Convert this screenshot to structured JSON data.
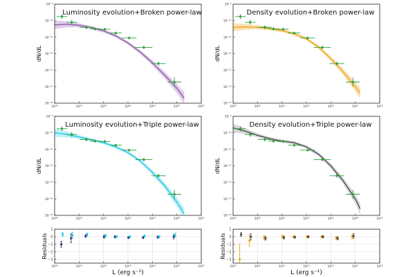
{
  "chart_data": [
    {
      "type": "line",
      "title": "Luminosity evolution+Broken power-law",
      "xlabel": "",
      "ylabel": "dN/dL",
      "xlim_log10": [
        49,
        55
      ],
      "ylim_log10": [
        -15,
        -9
      ],
      "x_tick_labels": [
        "10⁴⁹",
        "10⁵⁰",
        "10⁵¹",
        "10⁵²",
        "10⁵³",
        "10⁵⁴",
        "10⁵⁵"
      ],
      "y_tick_labels": [
        "10⁻⁹",
        "10⁻¹⁰",
        "10⁻¹¹",
        "10⁻¹²",
        "10⁻¹³",
        "10⁻¹⁴",
        "10⁻¹⁵"
      ],
      "model_color": "#8e5fa8",
      "band_color": "#c9a8dc",
      "model_log10": {
        "x": [
          49.0,
          49.5,
          50.0,
          50.5,
          51.0,
          51.5,
          52.0,
          52.5,
          53.0,
          53.5,
          54.0,
          54.3
        ],
        "y": [
          -10.25,
          -10.22,
          -10.28,
          -10.42,
          -10.62,
          -10.92,
          -11.35,
          -11.9,
          -12.55,
          -13.3,
          -14.1,
          -14.7
        ]
      },
      "band_halfwidth": [
        0.25,
        0.18,
        0.12,
        0.1,
        0.1,
        0.1,
        0.1,
        0.12,
        0.15,
        0.2,
        0.28,
        0.35
      ],
      "data_log10": {
        "x": [
          49.3,
          49.7,
          50.3,
          50.65,
          51.05,
          51.5,
          52.05,
          52.65,
          53.25,
          53.9
        ],
        "y": [
          -9.75,
          -10.1,
          -10.4,
          -10.5,
          -10.52,
          -10.75,
          -11.05,
          -11.62,
          -12.6,
          -13.72
        ],
        "xerr": [
          0.22,
          0.22,
          0.28,
          0.22,
          0.22,
          0.25,
          0.3,
          0.35,
          0.3,
          0.28
        ],
        "yerr": [
          0.15,
          0.15,
          0.12,
          0.1,
          0.08,
          0.08,
          0.08,
          0.1,
          0.12,
          0.28
        ]
      },
      "data_color": "#2e9e3e"
    },
    {
      "type": "line",
      "title": "Density evolution+Broken power-law",
      "xlabel": "",
      "ylabel": "dN/dL",
      "xlim_log10": [
        49,
        55
      ],
      "ylim_log10": [
        -15,
        -9
      ],
      "x_tick_labels": [
        "10⁴⁹",
        "10⁵⁰",
        "10⁵¹",
        "10⁵²",
        "10⁵³",
        "10⁵⁴",
        "10⁵⁵"
      ],
      "y_tick_labels": [
        "10⁻⁹",
        "10⁻¹⁰",
        "10⁻¹¹",
        "10⁻¹²",
        "10⁻¹³",
        "10⁻¹⁴",
        "10⁻¹⁵"
      ],
      "model_color": "#f0a30a",
      "band_color": "#f7cf8a",
      "model_log10": {
        "x": [
          49.0,
          49.5,
          50.0,
          50.5,
          51.0,
          51.5,
          52.0,
          52.5,
          53.0,
          53.5,
          54.0,
          54.2
        ],
        "y": [
          -10.4,
          -10.38,
          -10.4,
          -10.48,
          -10.6,
          -10.8,
          -11.1,
          -11.6,
          -12.3,
          -13.1,
          -14.0,
          -14.4
        ]
      },
      "band_halfwidth": [
        0.25,
        0.18,
        0.12,
        0.1,
        0.1,
        0.1,
        0.1,
        0.12,
        0.15,
        0.2,
        0.28,
        0.35
      ],
      "data_log10": {
        "x": [
          49.3,
          49.7,
          50.3,
          50.65,
          51.05,
          51.5,
          52.05,
          52.65,
          53.25,
          53.9
        ],
        "y": [
          -9.75,
          -10.1,
          -10.4,
          -10.5,
          -10.52,
          -10.75,
          -11.05,
          -11.62,
          -12.6,
          -13.72
        ],
        "xerr": [
          0.22,
          0.22,
          0.28,
          0.22,
          0.22,
          0.25,
          0.3,
          0.35,
          0.3,
          0.28
        ],
        "yerr": [
          0.15,
          0.15,
          0.12,
          0.1,
          0.08,
          0.08,
          0.08,
          0.1,
          0.12,
          0.28
        ]
      },
      "data_color": "#2e9e3e"
    },
    {
      "type": "line",
      "title": "Luminosity evolution+Triple power-law",
      "xlabel": "",
      "ylabel": "dN/dL",
      "xlim_log10": [
        49,
        55
      ],
      "ylim_log10": [
        -15,
        -9
      ],
      "x_tick_labels": [
        "10⁴⁹",
        "10⁵⁰",
        "10⁵¹",
        "10⁵²",
        "10⁵³",
        "10⁵⁴",
        "10⁵⁵"
      ],
      "y_tick_labels": [
        "10⁻⁹",
        "10⁻¹⁰",
        "10⁻¹¹",
        "10⁻¹²",
        "10⁻¹³",
        "10⁻¹⁴",
        "10⁻¹⁵"
      ],
      "model_color": "#1ec8e6",
      "band_color": "#9ae6f3",
      "model_log10": {
        "x": [
          49.0,
          49.5,
          50.0,
          50.5,
          51.0,
          51.5,
          52.0,
          52.5,
          53.0,
          53.5,
          54.0,
          54.3
        ],
        "y": [
          -10.0,
          -10.1,
          -10.25,
          -10.42,
          -10.6,
          -10.85,
          -11.2,
          -11.7,
          -12.4,
          -13.2,
          -14.2,
          -14.9
        ]
      },
      "band_halfwidth": [
        0.25,
        0.18,
        0.12,
        0.1,
        0.1,
        0.1,
        0.1,
        0.12,
        0.15,
        0.2,
        0.28,
        0.35
      ],
      "data_log10": {
        "x": [
          49.3,
          49.7,
          50.3,
          50.65,
          51.05,
          51.5,
          52.05,
          52.65,
          53.25,
          53.9
        ],
        "y": [
          -9.75,
          -10.1,
          -10.4,
          -10.5,
          -10.52,
          -10.75,
          -11.05,
          -11.62,
          -12.6,
          -13.72
        ],
        "xerr": [
          0.22,
          0.22,
          0.28,
          0.22,
          0.22,
          0.25,
          0.3,
          0.35,
          0.3,
          0.28
        ],
        "yerr": [
          0.15,
          0.15,
          0.12,
          0.1,
          0.08,
          0.08,
          0.08,
          0.1,
          0.12,
          0.28
        ]
      },
      "data_color": "#2e9e3e"
    },
    {
      "type": "line",
      "title": "Density evolution+Triple power-law",
      "xlabel": "",
      "ylabel": "dN/dL",
      "xlim_log10": [
        49,
        55
      ],
      "ylim_log10": [
        -15,
        -9
      ],
      "x_tick_labels": [
        "10⁴⁹",
        "10⁵⁰",
        "10⁵¹",
        "10⁵²",
        "10⁵³",
        "10⁵⁴",
        "10⁵⁵"
      ],
      "y_tick_labels": [
        "10⁻⁹",
        "10⁻¹⁰",
        "10⁻¹¹",
        "10⁻¹²",
        "10⁻¹³",
        "10⁻¹⁴",
        "10⁻¹⁵"
      ],
      "model_color": "#4a4a4a",
      "band_color": "#bfbfbf",
      "model_log10": {
        "x": [
          49.0,
          49.5,
          50.0,
          50.5,
          51.0,
          51.5,
          52.0,
          52.5,
          53.0,
          53.5,
          54.0,
          54.2
        ],
        "y": [
          -9.7,
          -9.9,
          -10.15,
          -10.35,
          -10.5,
          -10.6,
          -10.85,
          -11.3,
          -12.0,
          -12.9,
          -14.0,
          -14.6
        ]
      },
      "band_halfwidth": [
        0.25,
        0.18,
        0.12,
        0.1,
        0.1,
        0.1,
        0.1,
        0.12,
        0.15,
        0.2,
        0.28,
        0.35
      ],
      "data_log10": {
        "x": [
          49.3,
          49.7,
          50.3,
          50.65,
          51.05,
          51.5,
          52.05,
          52.65,
          53.25,
          53.9
        ],
        "y": [
          -9.75,
          -10.1,
          -10.4,
          -10.5,
          -10.52,
          -10.75,
          -11.05,
          -11.62,
          -12.6,
          -13.72
        ],
        "xerr": [
          0.22,
          0.22,
          0.28,
          0.22,
          0.22,
          0.25,
          0.3,
          0.35,
          0.3,
          0.28
        ],
        "yerr": [
          0.15,
          0.15,
          0.12,
          0.1,
          0.08,
          0.08,
          0.08,
          0.1,
          0.12,
          0.28
        ]
      },
      "data_color": "#2e9e3e"
    },
    {
      "type": "scatter",
      "title": "",
      "xlabel": "L (erg s⁻¹)",
      "ylabel": "Residuals",
      "xlim_log10": [
        49,
        55
      ],
      "ylim": [
        -3.5,
        1
      ],
      "x_tick_labels": [
        "10⁴⁹",
        "10⁵⁰",
        "10⁵¹",
        "10⁵²",
        "10⁵³",
        "10⁵⁴",
        "10⁵⁵"
      ],
      "y_tick_labels": [
        "1",
        "0",
        "−1",
        "−2",
        "−3"
      ],
      "series": [
        {
          "name": "Luminosity evolution+Broken power-law",
          "color": "#3a2a6a",
          "x": [
            49.3,
            49.7,
            50.3,
            51.05,
            51.5,
            52.05,
            52.65,
            53.25,
            53.9
          ],
          "y": [
            -1.0,
            -0.2,
            0.1,
            0.0,
            0.0,
            -0.1,
            -0.1,
            -0.05,
            0.0
          ],
          "yerr": [
            0.4,
            0.6,
            0.2,
            0.2,
            0.15,
            0.15,
            0.15,
            0.15,
            0.3
          ]
        },
        {
          "name": "Luminosity evolution+Triple power-law",
          "color": "#1ec8e6",
          "x": [
            49.3,
            49.7,
            50.3,
            51.05,
            51.5,
            52.05,
            52.65,
            53.25,
            53.9
          ],
          "y": [
            0.3,
            0.2,
            0.3,
            0.15,
            0.0,
            0.0,
            0.1,
            0.0,
            0.2
          ],
          "yerr": [
            0.3,
            0.4,
            0.2,
            0.2,
            0.15,
            0.15,
            0.15,
            0.15,
            0.3
          ]
        }
      ]
    },
    {
      "type": "scatter",
      "title": "",
      "xlabel": "L (erg s⁻¹)",
      "ylabel": "Residuals",
      "xlim_log10": [
        49,
        55
      ],
      "ylim": [
        -3.5,
        1
      ],
      "x_tick_labels": [
        "10⁴⁹",
        "10⁵⁰",
        "10⁵¹",
        "10⁵²",
        "10⁵³",
        "10⁵⁴",
        "10⁵⁵"
      ],
      "y_tick_labels": [
        "1",
        "0",
        "−1",
        "−2",
        "−3"
      ],
      "series": [
        {
          "name": "Density evolution+Broken power-law",
          "color": "#f0a30a",
          "x": [
            49.3,
            49.7,
            50.3,
            51.05,
            51.5,
            52.05,
            52.65,
            53.25,
            53.9
          ],
          "y": [
            -3.0,
            -0.5,
            -0.1,
            0.0,
            0.0,
            0.0,
            0.0,
            -0.15,
            0.0
          ],
          "yerr": [
            2.0,
            0.8,
            0.3,
            0.2,
            0.15,
            0.15,
            0.15,
            0.2,
            0.3
          ]
        },
        {
          "name": "Density evolution+Triple power-law",
          "color": "#4a4a4a",
          "x": [
            49.3,
            49.7,
            50.3,
            51.05,
            51.5,
            52.05,
            52.65,
            53.25,
            53.9
          ],
          "y": [
            0.3,
            0.0,
            -0.2,
            -0.1,
            -0.05,
            0.0,
            0.0,
            -0.2,
            0.1
          ],
          "yerr": [
            0.3,
            0.4,
            0.25,
            0.2,
            0.15,
            0.15,
            0.15,
            0.2,
            0.3
          ]
        }
      ]
    }
  ]
}
